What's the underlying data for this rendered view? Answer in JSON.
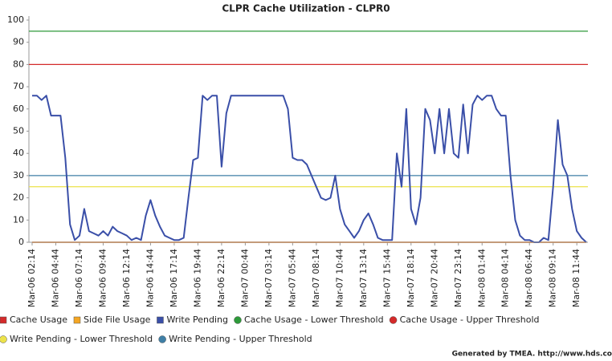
{
  "chart_data": {
    "type": "line",
    "title": "CLPR Cache Utilization - CLPR0",
    "footer": "Generated by TMEA. http://www.hds.co",
    "categories": [
      "Mar-06 02:14",
      null,
      null,
      null,
      null,
      "Mar-06 04:44",
      null,
      null,
      null,
      null,
      "Mar-06 07:14",
      null,
      null,
      null,
      null,
      "Mar-06 09:44",
      null,
      null,
      null,
      null,
      "Mar-06 12:14",
      null,
      null,
      null,
      null,
      "Mar-06 14:44",
      null,
      null,
      null,
      null,
      "Mar-06 17:14",
      null,
      null,
      null,
      null,
      "Mar-06 19:44",
      null,
      null,
      null,
      null,
      "Mar-06 22:14",
      null,
      null,
      null,
      null,
      "Mar-07 00:44",
      null,
      null,
      null,
      null,
      "Mar-07 03:14",
      null,
      null,
      null,
      null,
      "Mar-07 05:44",
      null,
      null,
      null,
      null,
      "Mar-07 08:14",
      null,
      null,
      null,
      null,
      "Mar-07 10:44",
      null,
      null,
      null,
      null,
      "Mar-07 13:14",
      null,
      null,
      null,
      null,
      "Mar-07 15:44",
      null,
      null,
      null,
      null,
      "Mar-07 18:14",
      null,
      null,
      null,
      null,
      "Mar-07 20:44",
      null,
      null,
      null,
      null,
      "Mar-07 23:14",
      null,
      null,
      null,
      null,
      "Mar-08 01:44",
      null,
      null,
      null,
      null,
      "Mar-08 04:14",
      null,
      null,
      null,
      null,
      "Mar-08 06:44",
      null,
      null,
      null,
      null,
      "Mar-08 09:14",
      null,
      null,
      null,
      null,
      "Mar-08 11:44",
      null,
      null
    ],
    "series": [
      {
        "name": "Cache Usage",
        "color": "#d42a2a",
        "values": [
          0,
          0,
          0,
          0,
          0,
          0,
          0,
          0,
          0,
          0,
          0,
          0,
          0,
          0,
          0,
          0,
          0,
          0,
          0,
          0,
          0,
          0,
          0,
          0,
          0,
          0,
          0,
          0,
          0,
          0,
          0,
          0,
          0,
          0,
          0,
          0,
          0,
          0,
          0,
          0,
          0,
          0,
          0,
          0,
          0,
          0,
          0,
          0,
          0,
          0,
          0,
          0,
          0,
          0,
          0,
          0,
          0,
          0,
          0,
          0,
          0,
          0,
          0,
          0,
          0,
          0,
          0,
          0,
          0,
          0,
          0,
          0,
          0,
          0,
          0,
          0,
          0,
          0,
          0,
          0,
          0,
          0,
          0,
          0,
          0,
          0,
          0,
          0,
          0,
          0,
          0,
          0,
          0,
          0,
          0,
          0,
          0,
          0,
          0,
          0,
          0,
          0,
          0,
          0,
          0,
          0,
          0,
          0,
          0,
          0,
          0,
          0,
          0,
          0,
          0,
          0,
          0,
          0
        ]
      },
      {
        "name": "Side File Usage",
        "color": "#f5a623",
        "values": [
          0,
          0,
          0,
          0,
          0,
          0,
          0,
          0,
          0,
          0,
          0,
          0,
          0,
          0,
          0,
          0,
          0,
          0,
          0,
          0,
          0,
          0,
          0,
          0,
          0,
          0,
          0,
          0,
          0,
          0,
          0,
          0,
          0,
          0,
          0,
          0,
          0,
          0,
          0,
          0,
          0,
          0,
          0,
          0,
          0,
          0,
          0,
          0,
          0,
          0,
          0,
          0,
          0,
          0,
          0,
          0,
          0,
          0,
          0,
          0,
          0,
          0,
          0,
          0,
          0,
          0,
          0,
          0,
          0,
          0,
          0,
          0,
          0,
          0,
          0,
          0,
          0,
          0,
          0,
          0,
          0,
          0,
          0,
          0,
          0,
          0,
          0,
          0,
          0,
          0,
          0,
          0,
          0,
          0,
          0,
          0,
          0,
          0,
          0,
          0,
          0,
          0,
          0,
          0,
          0,
          0,
          0,
          0,
          0,
          0,
          0,
          0,
          0,
          0,
          0,
          0,
          0,
          0
        ]
      },
      {
        "name": "Write Pending",
        "color": "#3a4fa8",
        "values": [
          66,
          66,
          64,
          66,
          57,
          57,
          57,
          38,
          8,
          1,
          3,
          15,
          5,
          4,
          3,
          5,
          3,
          7,
          5,
          4,
          3,
          1,
          2,
          1,
          12,
          19,
          12,
          7,
          3,
          2,
          1,
          1,
          2,
          20,
          37,
          38,
          66,
          64,
          66,
          66,
          34,
          58,
          66,
          66,
          66,
          66,
          66,
          66,
          66,
          66,
          66,
          66,
          66,
          66,
          60,
          38,
          37,
          37,
          35,
          30,
          25,
          20,
          19,
          20,
          30,
          15,
          8,
          5,
          2,
          5,
          10,
          13,
          8,
          2,
          1,
          1,
          1,
          40,
          25,
          60,
          15,
          8,
          20,
          60,
          55,
          40,
          60,
          40,
          60,
          40,
          38,
          62,
          40,
          62,
          66,
          64,
          66,
          66,
          60,
          57,
          57,
          30,
          10,
          3,
          1,
          1,
          0,
          0,
          2,
          1,
          25,
          55,
          35,
          30,
          15,
          5,
          2,
          0
        ]
      }
    ],
    "thresholds": [
      {
        "name": "Cache Usage - Lower Threshold",
        "color": "#2e9a3a",
        "value": 95
      },
      {
        "name": "Cache Usage - Upper Threshold",
        "color": "#d42a2a",
        "value": 80
      },
      {
        "name": "Write Pending - Lower Threshold",
        "color": "#ece24a",
        "value": 25
      },
      {
        "name": "Write Pending - Upper Threshold",
        "color": "#3f7fa6",
        "value": 30
      }
    ],
    "ylim": [
      0,
      100
    ],
    "yticks": [
      0,
      10,
      20,
      30,
      40,
      50,
      60,
      70,
      80,
      90,
      100
    ],
    "grid": false
  }
}
